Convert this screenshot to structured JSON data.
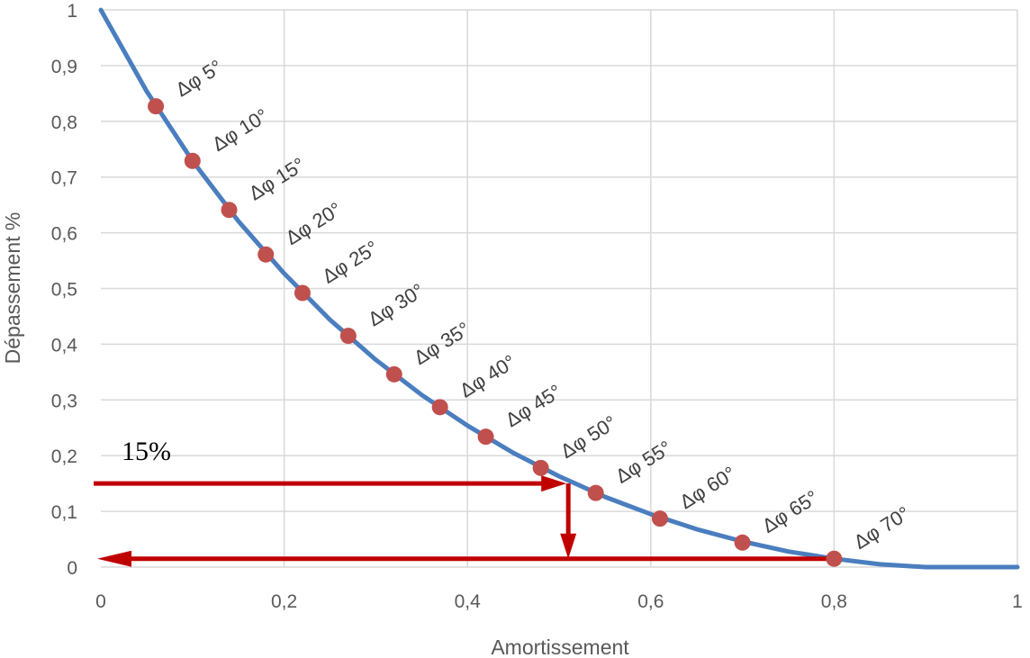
{
  "chart_data": {
    "type": "line",
    "xlabel": "Amortissement",
    "ylabel": "Dépassement %",
    "xlim": [
      0,
      1
    ],
    "ylim": [
      0,
      1
    ],
    "x_ticks": [
      0,
      0.2,
      0.4,
      0.6,
      0.8,
      1
    ],
    "x_tick_labels": [
      "0",
      "0,2",
      "0,4",
      "0,6",
      "0,8",
      "1"
    ],
    "y_ticks": [
      0,
      0.1,
      0.2,
      0.3,
      0.4,
      0.5,
      0.6,
      0.7,
      0.8,
      0.9,
      1
    ],
    "y_tick_labels": [
      "0",
      "0,1",
      "0,2",
      "0,3",
      "0,4",
      "0,5",
      "0,6",
      "0,7",
      "0,8",
      "0,9",
      "1"
    ],
    "grid": true,
    "line_color": "#4a7ebf",
    "marker_color": "#c0504d",
    "arrow_color": "#c00000",
    "series": [
      {
        "curve": "exp(-pi*z/sqrt(1-z^2))",
        "x": [
          0,
          0.05,
          0.1,
          0.15,
          0.2,
          0.25,
          0.3,
          0.35,
          0.4,
          0.45,
          0.5,
          0.55,
          0.6,
          0.65,
          0.7,
          0.75,
          0.8,
          0.85,
          0.9,
          0.95,
          1
        ],
        "y": [
          1,
          0.854,
          0.729,
          0.621,
          0.527,
          0.444,
          0.372,
          0.309,
          0.254,
          0.205,
          0.163,
          0.126,
          0.095,
          0.068,
          0.046,
          0.028,
          0.015,
          0.005,
          0.0,
          0.0,
          0.0
        ]
      }
    ],
    "points": [
      {
        "x": 0.06,
        "y": 0.827,
        "label": "Δφ 5°"
      },
      {
        "x": 0.1,
        "y": 0.729,
        "label": "Δφ 10°"
      },
      {
        "x": 0.14,
        "y": 0.641,
        "label": "Δφ 15°"
      },
      {
        "x": 0.18,
        "y": 0.561,
        "label": "Δφ 20°"
      },
      {
        "x": 0.22,
        "y": 0.492,
        "label": "Δφ 25°"
      },
      {
        "x": 0.27,
        "y": 0.415,
        "label": "Δφ 30°"
      },
      {
        "x": 0.32,
        "y": 0.346,
        "label": "Δφ 35°"
      },
      {
        "x": 0.37,
        "y": 0.287,
        "label": "Δφ 40°"
      },
      {
        "x": 0.42,
        "y": 0.234,
        "label": "Δφ 45°"
      },
      {
        "x": 0.48,
        "y": 0.178,
        "label": "Δφ 50°"
      },
      {
        "x": 0.54,
        "y": 0.133,
        "label": "Δφ 55°"
      },
      {
        "x": 0.61,
        "y": 0.087,
        "label": "Δφ 60°"
      },
      {
        "x": 0.7,
        "y": 0.044,
        "label": "Δφ 65°"
      },
      {
        "x": 0.8,
        "y": 0.015,
        "label": "Δφ 70°"
      }
    ],
    "annotation": {
      "text": "15%",
      "y_level": 0.15,
      "x_intersect": 0.51,
      "y_bottom": 0.015,
      "x_left": 0,
      "x_right": 0.8
    }
  }
}
